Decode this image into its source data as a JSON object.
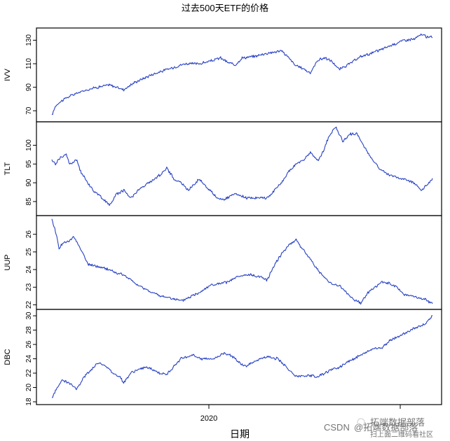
{
  "chart_data": {
    "type": "line",
    "title": "过去500天ETF的价格",
    "xlabel": "日期",
    "x_tick_labels": [
      "2020",
      ""
    ],
    "n_days": 500,
    "line_color": "#2741c4",
    "panels": [
      {
        "name": "IVV",
        "ylabel": "IVV",
        "ylim": [
          63,
          138
        ],
        "yticks": [
          70,
          90,
          110,
          130
        ],
        "keyframes": [
          [
            0,
            66
          ],
          [
            5,
            74
          ],
          [
            10,
            77
          ],
          [
            20,
            81
          ],
          [
            35,
            85
          ],
          [
            55,
            89
          ],
          [
            80,
            92
          ],
          [
            100,
            88
          ],
          [
            115,
            94
          ],
          [
            140,
            101
          ],
          [
            165,
            106
          ],
          [
            185,
            110
          ],
          [
            205,
            110
          ],
          [
            220,
            112
          ],
          [
            235,
            115
          ],
          [
            245,
            111
          ],
          [
            255,
            109
          ],
          [
            265,
            115
          ],
          [
            280,
            116
          ],
          [
            300,
            119
          ],
          [
            320,
            121
          ],
          [
            330,
            115
          ],
          [
            340,
            108
          ],
          [
            350,
            106
          ],
          [
            360,
            102
          ],
          [
            370,
            113
          ],
          [
            380,
            115
          ],
          [
            390,
            112
          ],
          [
            400,
            105
          ],
          [
            415,
            110
          ],
          [
            430,
            116
          ],
          [
            450,
            120
          ],
          [
            470,
            125
          ],
          [
            490,
            130
          ],
          [
            505,
            131
          ],
          [
            515,
            135
          ],
          [
            525,
            132
          ],
          [
            528,
            133
          ]
        ]
      },
      {
        "name": "TLT",
        "ylabel": "TLT",
        "ylim": [
          82,
          105.5
        ],
        "yticks": [
          85,
          90,
          95,
          100
        ],
        "keyframes": [
          [
            0,
            96
          ],
          [
            5,
            95
          ],
          [
            10,
            96.5
          ],
          [
            20,
            97.5
          ],
          [
            25,
            95
          ],
          [
            35,
            96
          ],
          [
            40,
            93
          ],
          [
            50,
            90
          ],
          [
            60,
            87.5
          ],
          [
            70,
            86
          ],
          [
            80,
            84
          ],
          [
            90,
            87
          ],
          [
            100,
            88
          ],
          [
            110,
            86
          ],
          [
            120,
            88
          ],
          [
            135,
            90
          ],
          [
            150,
            92
          ],
          [
            160,
            94
          ],
          [
            170,
            91
          ],
          [
            180,
            90
          ],
          [
            190,
            88
          ],
          [
            205,
            91
          ],
          [
            220,
            88
          ],
          [
            230,
            86
          ],
          [
            240,
            85.5
          ],
          [
            255,
            87
          ],
          [
            270,
            86
          ],
          [
            290,
            86
          ],
          [
            300,
            86
          ],
          [
            310,
            88
          ],
          [
            320,
            90
          ],
          [
            330,
            93
          ],
          [
            340,
            95
          ],
          [
            350,
            96
          ],
          [
            360,
            98
          ],
          [
            370,
            96
          ],
          [
            375,
            97
          ],
          [
            385,
            102
          ],
          [
            395,
            105
          ],
          [
            405,
            101
          ],
          [
            415,
            103
          ],
          [
            425,
            103
          ],
          [
            440,
            98
          ],
          [
            455,
            94
          ],
          [
            470,
            92
          ],
          [
            490,
            91
          ],
          [
            505,
            90
          ],
          [
            515,
            88
          ],
          [
            525,
            90
          ],
          [
            530,
            91
          ]
        ]
      },
      {
        "name": "UUP",
        "ylabel": "UUP",
        "ylim": [
          21.9,
          26.9
        ],
        "yticks": [
          22,
          23,
          24,
          25,
          26
        ],
        "keyframes": [
          [
            0,
            26.8
          ],
          [
            5,
            26.2
          ],
          [
            10,
            25.2
          ],
          [
            15,
            25.5
          ],
          [
            25,
            25.6
          ],
          [
            30,
            25.9
          ],
          [
            40,
            25.2
          ],
          [
            50,
            24.3
          ],
          [
            60,
            24.2
          ],
          [
            70,
            24.1
          ],
          [
            80,
            24.0
          ],
          [
            90,
            23.8
          ],
          [
            100,
            23.7
          ],
          [
            120,
            23.1
          ],
          [
            135,
            22.8
          ],
          [
            150,
            22.5
          ],
          [
            165,
            22.4
          ],
          [
            180,
            22.2
          ],
          [
            195,
            22.5
          ],
          [
            205,
            22.7
          ],
          [
            220,
            23.1
          ],
          [
            235,
            23.2
          ],
          [
            245,
            23.3
          ],
          [
            260,
            23.6
          ],
          [
            275,
            23.7
          ],
          [
            290,
            23.6
          ],
          [
            300,
            23.4
          ],
          [
            310,
            24.3
          ],
          [
            320,
            24.9
          ],
          [
            330,
            25.4
          ],
          [
            340,
            25.7
          ],
          [
            350,
            25.1
          ],
          [
            360,
            24.6
          ],
          [
            370,
            24.0
          ],
          [
            380,
            23.5
          ],
          [
            390,
            23.2
          ],
          [
            400,
            23.1
          ],
          [
            410,
            22.7
          ],
          [
            420,
            22.3
          ],
          [
            430,
            22.1
          ],
          [
            440,
            22.7
          ],
          [
            450,
            23.0
          ],
          [
            460,
            23.3
          ],
          [
            470,
            23.2
          ],
          [
            480,
            23.0
          ],
          [
            490,
            22.6
          ],
          [
            500,
            22.5
          ],
          [
            510,
            22.4
          ],
          [
            520,
            22.3
          ],
          [
            528,
            22.1
          ]
        ]
      },
      {
        "name": "DBC",
        "ylabel": "DBC",
        "ylim": [
          18,
          30.5
        ],
        "yticks": [
          18,
          20,
          22,
          24,
          26,
          28,
          30
        ],
        "keyframes": [
          [
            0,
            18.5
          ],
          [
            5,
            19.5
          ],
          [
            10,
            20.5
          ],
          [
            15,
            21.0
          ],
          [
            25,
            20.5
          ],
          [
            35,
            19.8
          ],
          [
            45,
            21.5
          ],
          [
            55,
            22.5
          ],
          [
            65,
            23.5
          ],
          [
            75,
            23.0
          ],
          [
            85,
            22.0
          ],
          [
            95,
            21.5
          ],
          [
            100,
            20.7
          ],
          [
            110,
            22.0
          ],
          [
            120,
            22.5
          ],
          [
            130,
            22.8
          ],
          [
            140,
            22.5
          ],
          [
            150,
            22.0
          ],
          [
            160,
            21.8
          ],
          [
            170,
            23.0
          ],
          [
            180,
            24.0
          ],
          [
            195,
            24.5
          ],
          [
            210,
            24.0
          ],
          [
            225,
            24.0
          ],
          [
            240,
            24.8
          ],
          [
            250,
            24.5
          ],
          [
            260,
            23.5
          ],
          [
            270,
            23.0
          ],
          [
            285,
            23.8
          ],
          [
            300,
            24.3
          ],
          [
            315,
            24.0
          ],
          [
            330,
            22.5
          ],
          [
            340,
            21.5
          ],
          [
            350,
            21.5
          ],
          [
            360,
            21.7
          ],
          [
            370,
            21.5
          ],
          [
            380,
            22.0
          ],
          [
            390,
            22.5
          ],
          [
            400,
            22.8
          ],
          [
            410,
            23.5
          ],
          [
            420,
            24.0
          ],
          [
            430,
            24.5
          ],
          [
            440,
            25.0
          ],
          [
            450,
            25.5
          ],
          [
            460,
            25.5
          ],
          [
            470,
            26.5
          ],
          [
            480,
            27.0
          ],
          [
            490,
            27.5
          ],
          [
            500,
            28.0
          ],
          [
            510,
            28.5
          ],
          [
            520,
            28.8
          ],
          [
            525,
            29.5
          ],
          [
            530,
            30.0
          ]
        ]
      }
    ]
  },
  "watermark": {
    "source_text": "CSDN",
    "handle_text": "@拓端数据部落",
    "logo_text": "拓端数据部落",
    "logo_subtext": "扫上面二维码看社区"
  }
}
